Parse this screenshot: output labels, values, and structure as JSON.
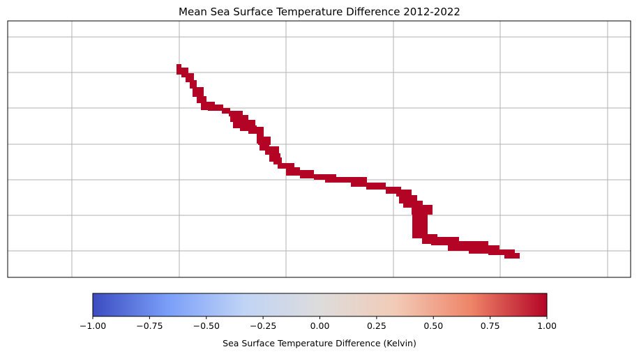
{
  "chart_data": {
    "type": "heatmap",
    "title": "Mean Sea Surface Temperature Difference 2012-2022",
    "grid": true,
    "axis_ticks_labeled": false,
    "colorbar": {
      "label": "Sea Surface Temperature Difference (Kelvin)",
      "range": [
        -1.0,
        1.0
      ],
      "ticks": [
        "−1.00",
        "−0.75",
        "−0.50",
        "−0.25",
        "0.00",
        "0.25",
        "0.50",
        "0.75",
        "1.00"
      ],
      "colormap": "coolwarm",
      "stops": [
        "#3b4cc0",
        "#7b9ff9",
        "#c0d4f5",
        "#dddcdc",
        "#f2cbb7",
        "#ee8468",
        "#b40426"
      ]
    },
    "band": {
      "value": 1.0,
      "color": "#b40426",
      "description": "narrow coastline band of cells, all at colorbar maximum"
    }
  }
}
